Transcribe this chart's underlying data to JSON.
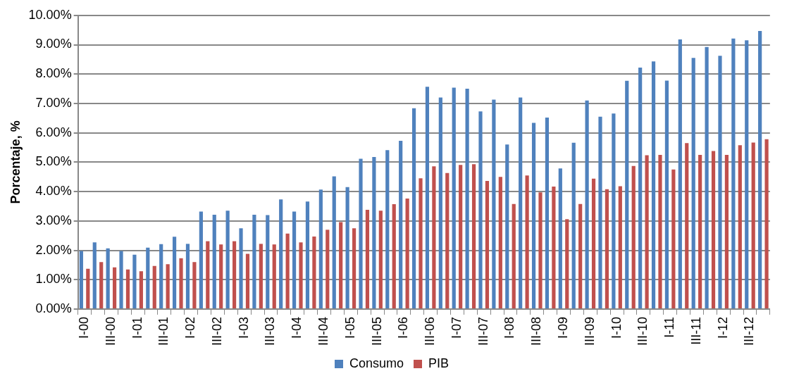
{
  "chart_data": {
    "type": "bar",
    "ylabel": "Porcentaje, %",
    "categories": [
      "I-00",
      null,
      "III-00",
      null,
      "I-01",
      null,
      "III-01",
      null,
      "I-02",
      null,
      "III-02",
      null,
      "I-03",
      null,
      "III-03",
      null,
      "I-04",
      null,
      "III-04",
      null,
      "I-05",
      null,
      "III-05",
      null,
      "I-06",
      null,
      "III-06",
      null,
      "I-07",
      null,
      "III-07",
      null,
      "I-08",
      null,
      "III-08",
      null,
      "I-09",
      null,
      "III-09",
      null,
      "I-10",
      null,
      "III-10",
      null,
      "I-11",
      null,
      "III-11",
      null,
      "I-12",
      null,
      "III-12",
      null
    ],
    "series": [
      {
        "name": "Consumo",
        "color": "#4f81bd",
        "values": [
          1.98,
          2.27,
          2.07,
          1.98,
          1.85,
          2.09,
          2.21,
          2.46,
          2.22,
          3.32,
          3.21,
          3.35,
          2.75,
          3.21,
          3.2,
          3.73,
          3.32,
          3.66,
          4.07,
          4.52,
          4.15,
          5.12,
          5.18,
          5.41,
          5.73,
          6.84,
          7.57,
          7.2,
          7.54,
          7.5,
          6.73,
          7.13,
          5.6,
          7.2,
          6.34,
          6.52,
          4.79,
          5.66,
          7.1,
          6.55,
          6.66,
          7.77,
          8.22,
          8.43,
          7.78,
          9.18,
          8.55,
          8.92,
          8.62,
          9.21,
          9.15,
          9.47
        ]
      },
      {
        "name": "PIB",
        "color": "#c0504d",
        "values": [
          1.37,
          1.6,
          1.42,
          1.35,
          1.29,
          1.47,
          1.53,
          1.73,
          1.6,
          2.31,
          2.2,
          2.31,
          1.88,
          2.22,
          2.2,
          2.57,
          2.27,
          2.47,
          2.7,
          2.96,
          2.75,
          3.38,
          3.35,
          3.57,
          3.76,
          4.45,
          4.86,
          4.63,
          4.91,
          4.93,
          4.36,
          4.5,
          3.58,
          4.55,
          3.97,
          4.17,
          3.06,
          3.58,
          4.44,
          4.08,
          4.18,
          4.87,
          5.24,
          5.25,
          4.75,
          5.65,
          5.25,
          5.38,
          5.25,
          5.58,
          5.67,
          5.78
        ]
      }
    ],
    "ylim": [
      0,
      10
    ],
    "yticks": [
      {
        "value": 0,
        "label": "0.00%"
      },
      {
        "value": 1,
        "label": "1.00%"
      },
      {
        "value": 2,
        "label": "2.00%"
      },
      {
        "value": 3,
        "label": "3.00%"
      },
      {
        "value": 4,
        "label": "4.00%"
      },
      {
        "value": 5,
        "label": "5.00%"
      },
      {
        "value": 6,
        "label": "6.00%"
      },
      {
        "value": 7,
        "label": "7.00%"
      },
      {
        "value": 8,
        "label": "8.00%"
      },
      {
        "value": 9,
        "label": "9.00%"
      },
      {
        "value": 10,
        "label": "10.00%"
      }
    ],
    "grid": "y",
    "legend": "bottom"
  }
}
